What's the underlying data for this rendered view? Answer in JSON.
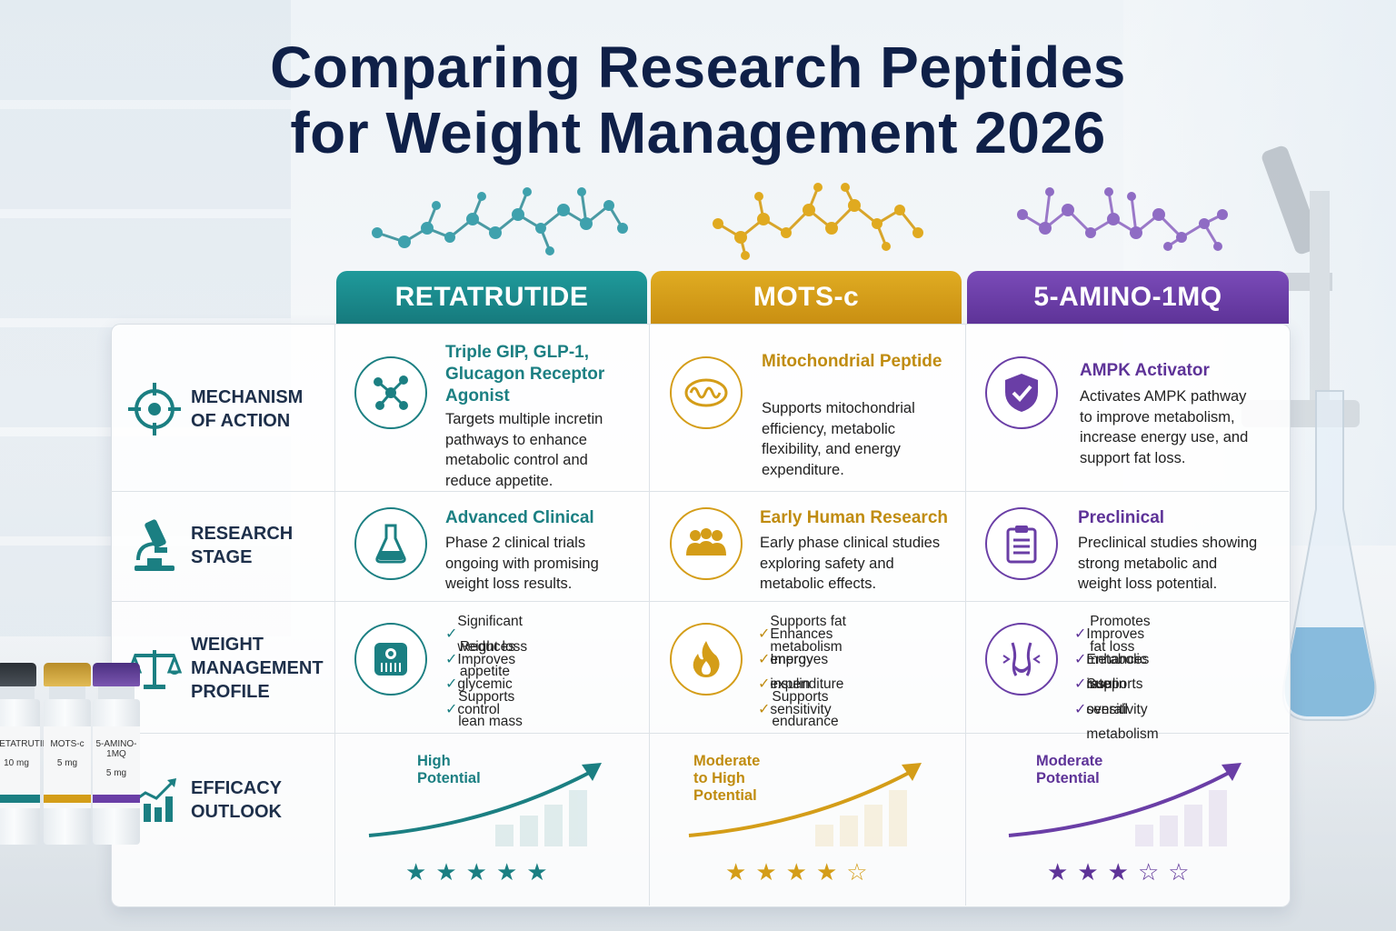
{
  "title": [
    "Comparing Research Peptides",
    "for Weight Management 2026"
  ],
  "colors": {
    "teal": "#1c8a8c",
    "gold": "#d49d18",
    "purple": "#6a3ea6",
    "navy": "#0f2048"
  },
  "columns": [
    {
      "name": "RETATRUTIDE"
    },
    {
      "name": "MOTS-c"
    },
    {
      "name": "5-AMINO-1MQ"
    }
  ],
  "rows": {
    "mechanism": {
      "label": [
        "MECHANISM",
        "OF ACTION"
      ],
      "icon": "target-icon",
      "cells": [
        {
          "icon": "molecule-icon",
          "title": "Triple GIP, GLP-1, Glucagon Receptor Agonist",
          "desc": "Targets multiple incretin pathways to enhance metabolic control and reduce appetite."
        },
        {
          "icon": "mitochondria-icon",
          "title": "Mitochondrial Peptide",
          "desc": "Supports mitochondrial efficiency, metabolic flexibility, and energy expenditure."
        },
        {
          "icon": "shield-check-icon",
          "title": "AMPK Activator",
          "desc": "Activates AMPK pathway to improve metabolism, increase energy use, and support fat loss."
        }
      ]
    },
    "stage": {
      "label": [
        "RESEARCH",
        "STAGE"
      ],
      "icon": "microscope-icon",
      "cells": [
        {
          "icon": "flask-icon",
          "title": "Advanced Clinical",
          "desc": "Phase 2 clinical trials ongoing with promising weight loss results."
        },
        {
          "icon": "people-icon",
          "title": "Early Human Research",
          "desc": "Early phase clinical studies exploring safety and metabolic effects."
        },
        {
          "icon": "clipboard-icon",
          "title": "Preclinical",
          "desc": "Preclinical studies showing strong metabolic and weight loss potential."
        }
      ]
    },
    "profile": {
      "label": [
        "WEIGHT",
        "MANAGEMENT",
        "PROFILE"
      ],
      "icon": "scales-icon",
      "cells": [
        {
          "icon": "bathroom-scale-icon",
          "items": [
            "Significant weight loss",
            "Reduces appetite",
            "Improves glycemic control",
            "Supports lean mass"
          ]
        },
        {
          "icon": "flame-icon",
          "items": [
            "Supports fat metabolism",
            "Enhances energy expenditure",
            "Improves insulin sensitivity",
            "Supports endurance"
          ]
        },
        {
          "icon": "waist-icon",
          "items": [
            "Promotes fat loss",
            "Improves metabolic rate",
            "Enhances insulin sensitivity",
            "Supports overall metabolism"
          ]
        }
      ]
    },
    "efficacy": {
      "label": [
        "EFFICACY",
        "OUTLOOK"
      ],
      "icon": "bar-chart-up-icon",
      "cells": [
        {
          "outlook": "High Potential",
          "rating": 5
        },
        {
          "outlook": "Moderate to High Potential",
          "rating": 4
        },
        {
          "outlook": "Moderate Potential",
          "rating": 3
        }
      ]
    }
  },
  "vials": [
    {
      "name": "RETATRUTIDE",
      "dose": "10 mg"
    },
    {
      "name": "MOTS-c",
      "dose": "5 mg"
    },
    {
      "name": "5-AMINO-1MQ",
      "dose": "5 mg"
    }
  ]
}
